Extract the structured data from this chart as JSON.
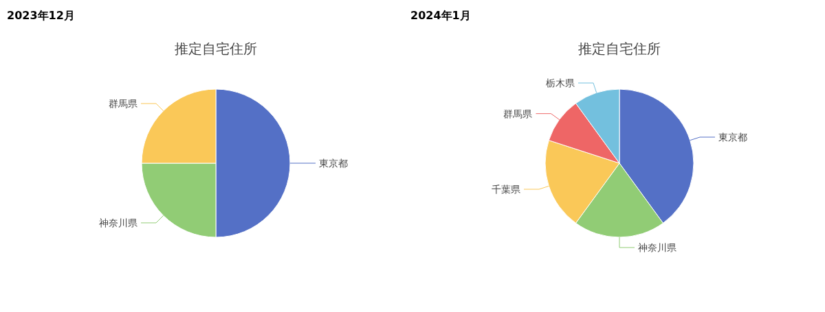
{
  "chart_data": [
    {
      "type": "pie",
      "title": "2023年12月",
      "subtitle": "推定自宅住所",
      "categories": [
        "東京都",
        "神奈川県",
        "群馬県"
      ],
      "values": [
        50,
        25,
        25
      ],
      "colors": [
        "#5470c6",
        "#91cc75",
        "#fac858"
      ]
    },
    {
      "type": "pie",
      "title": "2024年1月",
      "subtitle": "推定自宅住所",
      "categories": [
        "東京都",
        "神奈川県",
        "千葉県",
        "群馬県",
        "栃木県"
      ],
      "values": [
        40,
        20,
        20,
        10,
        10
      ],
      "colors": [
        "#5470c6",
        "#91cc75",
        "#fac858",
        "#ee6666",
        "#73c0de"
      ]
    }
  ]
}
